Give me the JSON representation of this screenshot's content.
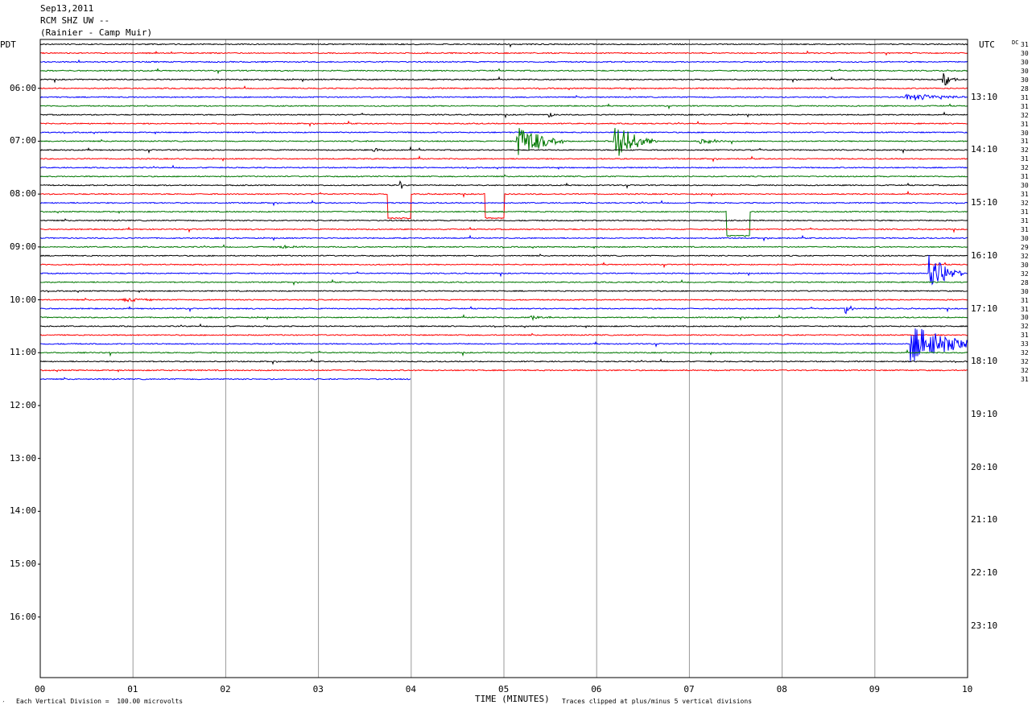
{
  "header": {
    "date": "Sep13,2011",
    "station": "RCM SHZ UW --",
    "location": "(Rainier - Camp Muir)"
  },
  "axes": {
    "left_label": "PDT",
    "right_label": "UTC",
    "dc_label": "DC"
  },
  "footer": {
    "scale_note": "Each Vertical Division =  100.00 microvolts",
    "clip_note": "Traces clipped at plus/minus 5 vertical divisions",
    "corner_mark": "′"
  },
  "chart_data": {
    "type": "line",
    "title": "",
    "xlabel": "TIME (MINUTES)",
    "x_ticks": [
      "00",
      "01",
      "02",
      "03",
      "04",
      "05",
      "06",
      "07",
      "08",
      "09",
      "10"
    ],
    "xlim": [
      0,
      10
    ],
    "row_minutes": 10,
    "rows_per_hour": 6,
    "start_hour_pdt": 5.17,
    "pdt_ticks": [
      {
        "label": "06:00",
        "row": 5
      },
      {
        "label": "07:00",
        "row": 11
      },
      {
        "label": "08:00",
        "row": 17
      },
      {
        "label": "09:00",
        "row": 23
      },
      {
        "label": "10:00",
        "row": 29
      },
      {
        "label": "11:00",
        "row": 35
      },
      {
        "label": "12:00",
        "row": 41
      },
      {
        "label": "13:00",
        "row": 47
      },
      {
        "label": "14:00",
        "row": 53
      },
      {
        "label": "15:00",
        "row": 59
      },
      {
        "label": "16:00",
        "row": 65
      }
    ],
    "utc_ticks": [
      {
        "label": "13:10",
        "row": 6
      },
      {
        "label": "14:10",
        "row": 12
      },
      {
        "label": "15:10",
        "row": 18
      },
      {
        "label": "16:10",
        "row": 24
      },
      {
        "label": "17:10",
        "row": 30
      },
      {
        "label": "18:10",
        "row": 36
      },
      {
        "label": "19:10",
        "row": 42
      },
      {
        "label": "20:10",
        "row": 48
      },
      {
        "label": "21:10",
        "row": 54
      },
      {
        "label": "22:10",
        "row": 60
      },
      {
        "label": "23:10",
        "row": 66
      }
    ],
    "trace_colors": [
      "#000000",
      "#ff0000",
      "#0000ff",
      "#007700"
    ],
    "traces": [
      {
        "row": 0,
        "end_minute": 10,
        "dc": "31"
      },
      {
        "row": 1,
        "end_minute": 10,
        "dc": "30"
      },
      {
        "row": 2,
        "end_minute": 10,
        "dc": "30"
      },
      {
        "row": 3,
        "end_minute": 10,
        "dc": "30"
      },
      {
        "row": 4,
        "end_minute": 10,
        "dc": "30"
      },
      {
        "row": 5,
        "end_minute": 10,
        "dc": "28"
      },
      {
        "row": 6,
        "end_minute": 10,
        "dc": "31"
      },
      {
        "row": 7,
        "end_minute": 10,
        "dc": "31"
      },
      {
        "row": 8,
        "end_minute": 10,
        "dc": "32"
      },
      {
        "row": 9,
        "end_minute": 10,
        "dc": "31"
      },
      {
        "row": 10,
        "end_minute": 10,
        "dc": "30"
      },
      {
        "row": 11,
        "end_minute": 10,
        "dc": "31"
      },
      {
        "row": 12,
        "end_minute": 10,
        "dc": "32"
      },
      {
        "row": 13,
        "end_minute": 10,
        "dc": "31"
      },
      {
        "row": 14,
        "end_minute": 10,
        "dc": "32"
      },
      {
        "row": 15,
        "end_minute": 10,
        "dc": "31"
      },
      {
        "row": 16,
        "end_minute": 10,
        "dc": "30"
      },
      {
        "row": 17,
        "end_minute": 10,
        "dc": "31"
      },
      {
        "row": 18,
        "end_minute": 10,
        "dc": "32"
      },
      {
        "row": 19,
        "end_minute": 10,
        "dc": "31"
      },
      {
        "row": 20,
        "end_minute": 10,
        "dc": "31"
      },
      {
        "row": 21,
        "end_minute": 10,
        "dc": "31"
      },
      {
        "row": 22,
        "end_minute": 10,
        "dc": "30"
      },
      {
        "row": 23,
        "end_minute": 10,
        "dc": "29"
      },
      {
        "row": 24,
        "end_minute": 10,
        "dc": "32"
      },
      {
        "row": 25,
        "end_minute": 10,
        "dc": "30"
      },
      {
        "row": 26,
        "end_minute": 10,
        "dc": "32"
      },
      {
        "row": 27,
        "end_minute": 10,
        "dc": "28"
      },
      {
        "row": 28,
        "end_minute": 10,
        "dc": "30"
      },
      {
        "row": 29,
        "end_minute": 10,
        "dc": "31"
      },
      {
        "row": 30,
        "end_minute": 10,
        "dc": "31"
      },
      {
        "row": 31,
        "end_minute": 10,
        "dc": "30"
      },
      {
        "row": 32,
        "end_minute": 10,
        "dc": "32"
      },
      {
        "row": 33,
        "end_minute": 10,
        "dc": "31"
      },
      {
        "row": 34,
        "end_minute": 10,
        "dc": "33"
      },
      {
        "row": 35,
        "end_minute": 10,
        "dc": "32"
      },
      {
        "row": 36,
        "end_minute": 10,
        "dc": "32"
      },
      {
        "row": 37,
        "end_minute": 10,
        "dc": "32"
      },
      {
        "row": 38,
        "end_minute": 4,
        "dc": "31"
      }
    ],
    "events": [
      {
        "row": 4,
        "minute": 9.75,
        "amp": 2.0,
        "dur": 0.15
      },
      {
        "row": 6,
        "minute": 9.35,
        "amp": 1.0,
        "dur": 0.8
      },
      {
        "row": 8,
        "minute": 5.5,
        "amp": 0.6,
        "dur": 0.1
      },
      {
        "row": 11,
        "minute": 5.15,
        "amp": 5.0,
        "dur": 0.5
      },
      {
        "row": 11,
        "minute": 6.2,
        "amp": 5.0,
        "dur": 0.45
      },
      {
        "row": 11,
        "minute": 7.1,
        "amp": 0.6,
        "dur": 0.6
      },
      {
        "row": 12,
        "minute": 3.6,
        "amp": 0.6,
        "dur": 0.2
      },
      {
        "row": 16,
        "minute": 3.9,
        "amp": 1.0,
        "dur": 0.02
      },
      {
        "row": 23,
        "minute": 2.6,
        "amp": 0.4,
        "dur": 0.3
      },
      {
        "row": 26,
        "minute": 9.6,
        "amp": 5.0,
        "dur": 0.35
      },
      {
        "row": 29,
        "minute": 0.9,
        "amp": 0.5,
        "dur": 0.4
      },
      {
        "row": 30,
        "minute": 8.7,
        "amp": 1.4,
        "dur": 0.12
      },
      {
        "row": 31,
        "minute": 5.3,
        "amp": 0.6,
        "dur": 0.35
      },
      {
        "row": 34,
        "minute": 9.4,
        "amp": 5.0,
        "dur": 0.9
      }
    ],
    "steps": [
      {
        "row": 17,
        "from": 3.75,
        "to": 4.0
      },
      {
        "row": 17,
        "from": 4.8,
        "to": 5.0
      },
      {
        "row": 19,
        "from": 7.4,
        "to": 7.65
      }
    ]
  }
}
